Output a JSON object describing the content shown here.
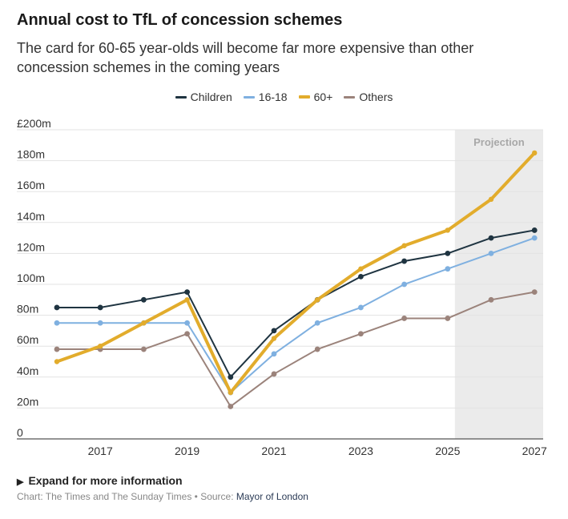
{
  "title": "Annual cost to TfL of concession schemes",
  "subtitle": "The card for 60-65 year-olds will become far more expensive than other concession schemes in the coming years",
  "chart_data": {
    "type": "line",
    "x": [
      2016,
      2017,
      2018,
      2019,
      2020,
      2021,
      2022,
      2023,
      2024,
      2025,
      2026,
      2027
    ],
    "x_tick_labels": [
      "2017",
      "2019",
      "2021",
      "2023",
      "2025",
      "2027"
    ],
    "x_tick_values": [
      2017,
      2019,
      2021,
      2023,
      2025,
      2027
    ],
    "y_tick_labels": [
      "0",
      "20m",
      "40m",
      "60m",
      "80m",
      "100m",
      "120m",
      "140m",
      "160m",
      "180m",
      "£200m"
    ],
    "y_tick_values": [
      0,
      20,
      40,
      60,
      80,
      100,
      120,
      140,
      160,
      180,
      200
    ],
    "ylim": [
      0,
      200
    ],
    "y_unit": "£m",
    "grid": true,
    "legend_position": "top-center",
    "projection": {
      "label": "Projection",
      "from": 2025,
      "to": 2027
    },
    "series": [
      {
        "name": "Children",
        "color": "#1f3441",
        "values": [
          85,
          85,
          90,
          95,
          40,
          70,
          90,
          105,
          115,
          120,
          130,
          135
        ]
      },
      {
        "name": "16-18",
        "color": "#7fb0e0",
        "values": [
          75,
          75,
          75,
          75,
          30,
          55,
          75,
          85,
          100,
          110,
          120,
          130
        ]
      },
      {
        "name": "60+",
        "color": "#e2ac2c",
        "values": [
          50,
          60,
          75,
          90,
          30,
          65,
          90,
          110,
          125,
          135,
          155,
          185
        ]
      },
      {
        "name": "Others",
        "color": "#9b837b",
        "values": [
          58,
          58,
          58,
          68,
          21,
          42,
          58,
          68,
          78,
          78,
          90,
          95
        ]
      }
    ]
  },
  "footer": {
    "expand_label": "Expand for more information",
    "credit_prefix": "Chart: The Times and The Sunday Times • Source: ",
    "source_name": "Mayor of London"
  }
}
